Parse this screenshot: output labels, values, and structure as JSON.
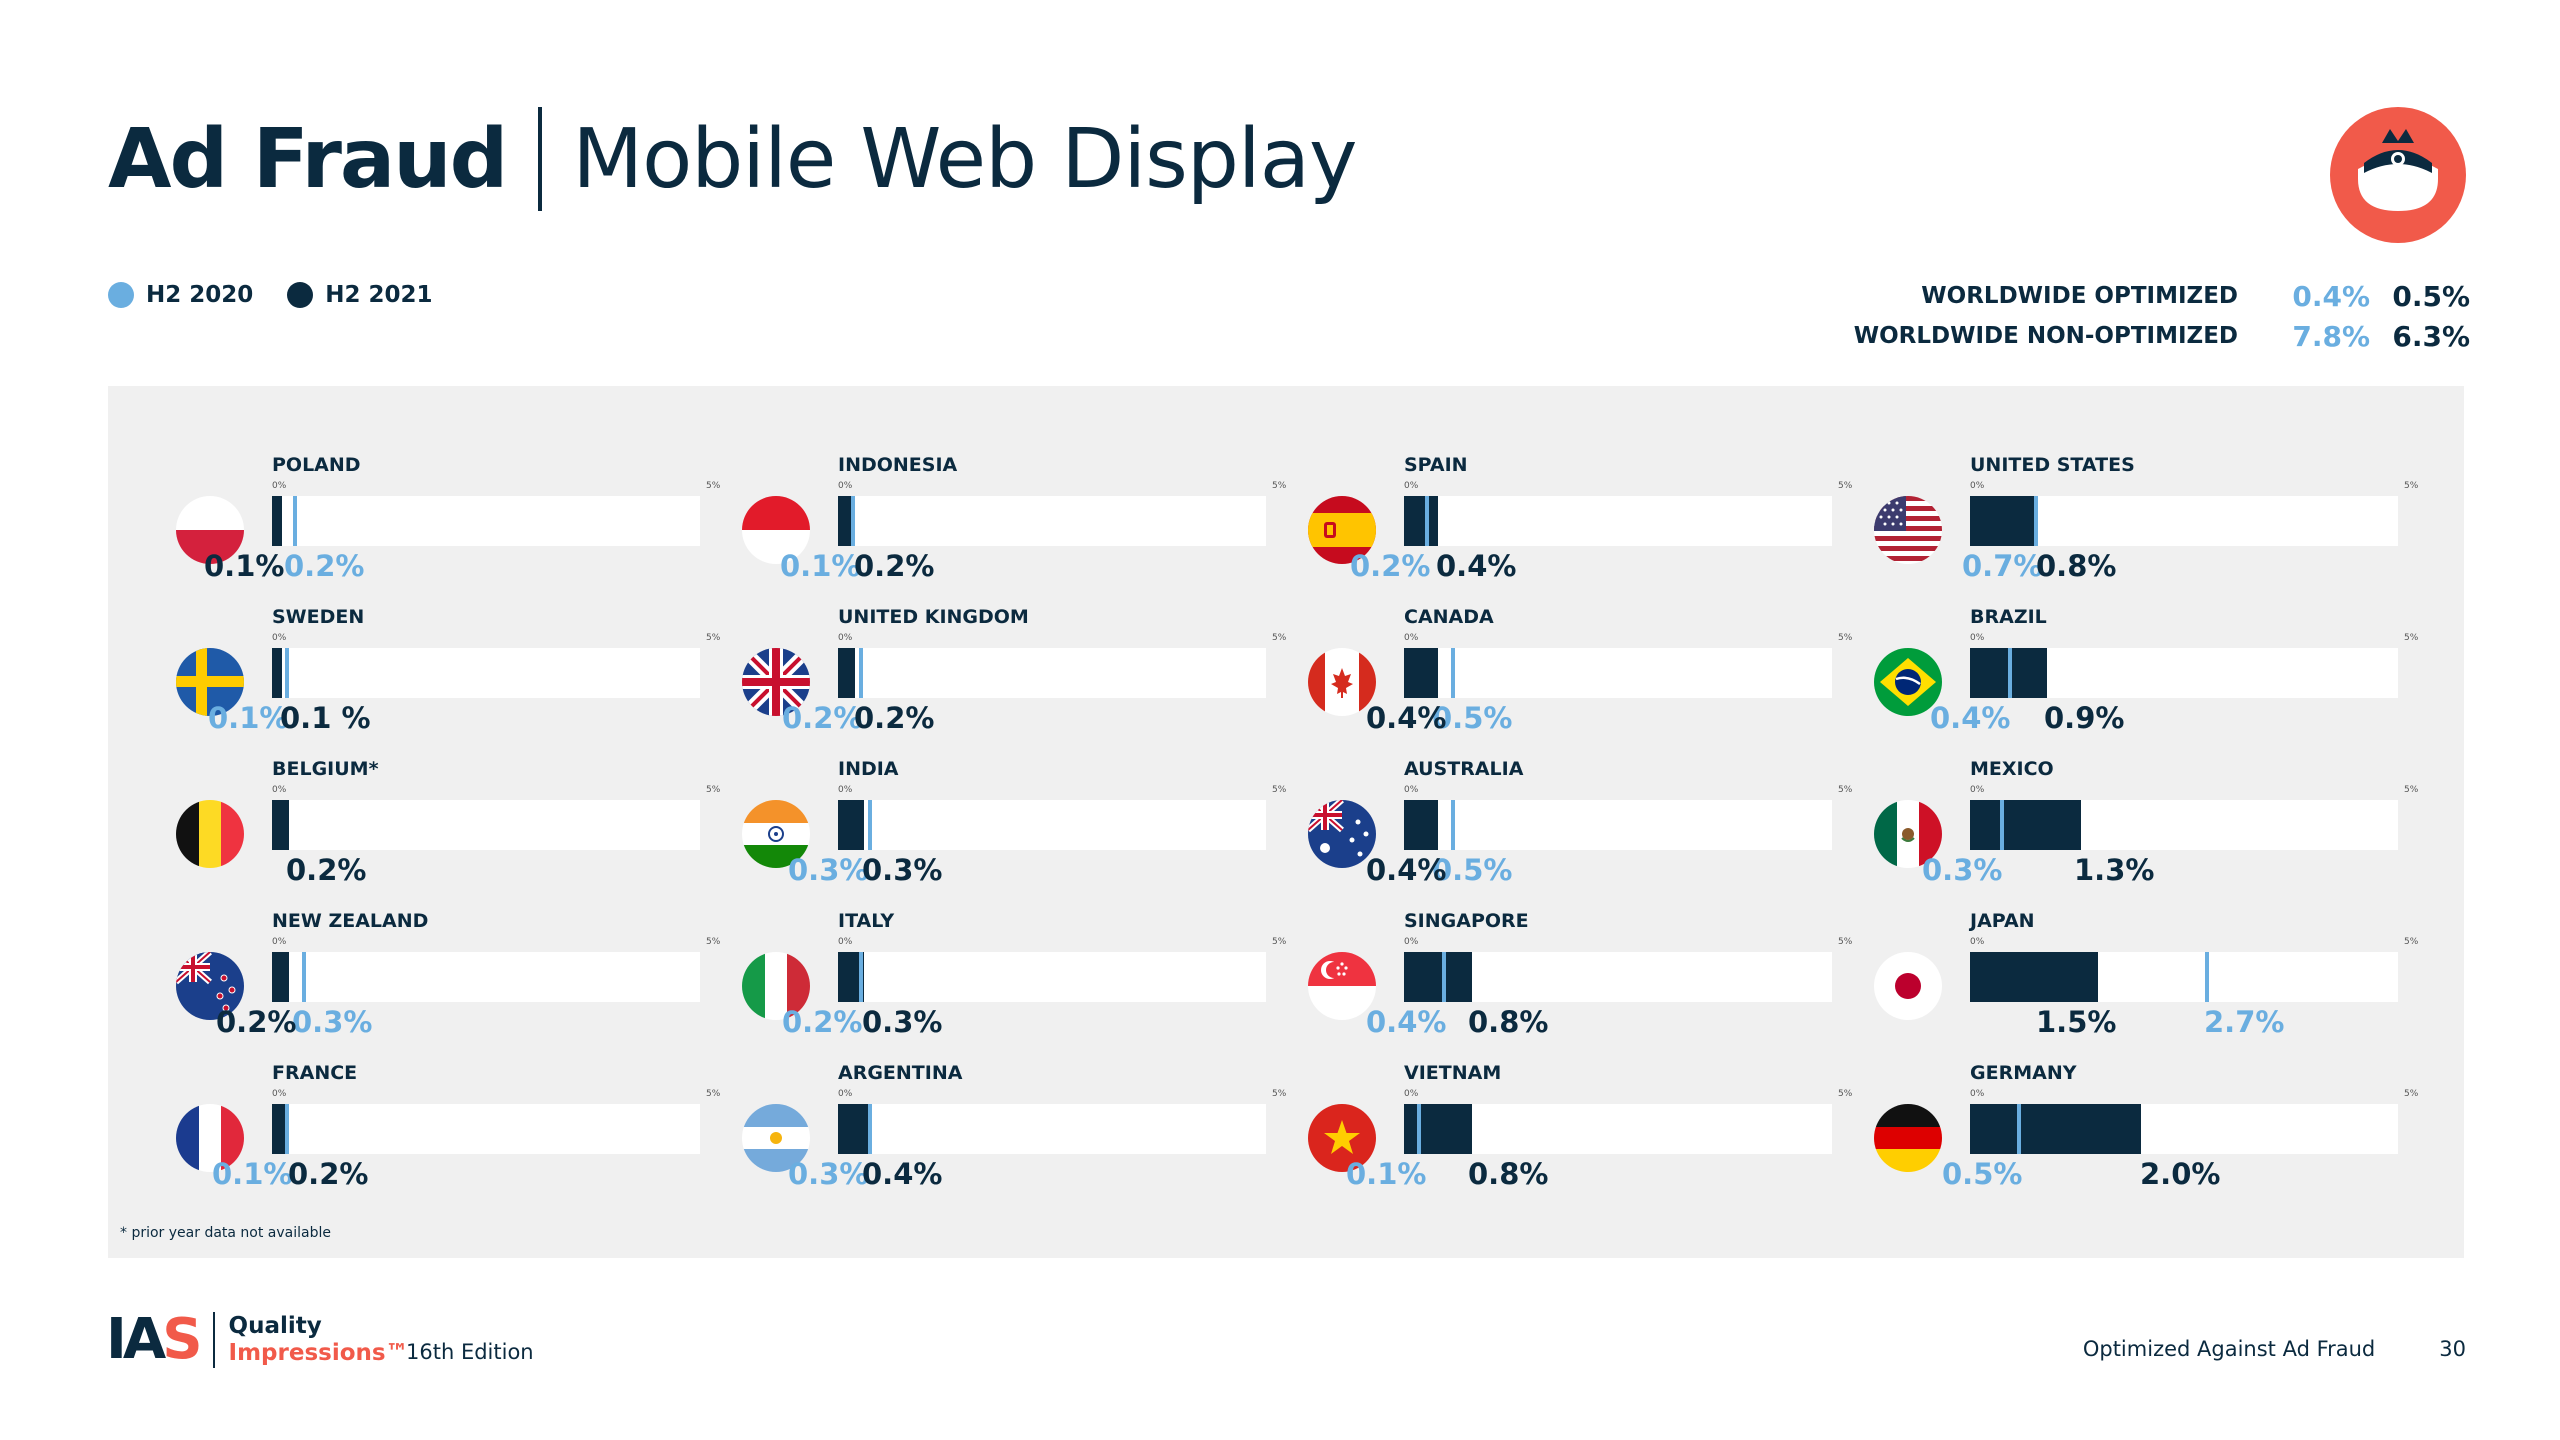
{
  "title": {
    "bold": "Ad Fraud",
    "light": "Mobile Web Display"
  },
  "legend": [
    {
      "label": "H2 2020",
      "color": "#6aaee0"
    },
    {
      "label": "H2 2021",
      "color": "#0b2a3f"
    }
  ],
  "worldwide": [
    {
      "label": "WORLDWIDE OPTIMIZED",
      "h2_2020": "0.4%",
      "h2_2021": "0.5%"
    },
    {
      "label": "WORLDWIDE NON-OPTIMIZED",
      "h2_2020": "7.8%",
      "h2_2021": "6.3%"
    }
  ],
  "colors": {
    "h2_2020": "#6aaee0",
    "h2_2021": "#0b2a3f",
    "brand_red": "#f15a4a",
    "panel_bg": "#f0f0f0"
  },
  "axis": {
    "min_label": "0%",
    "max_label": "5%"
  },
  "chart_data": {
    "type": "bar",
    "xlim": [
      0,
      5
    ],
    "series": [
      {
        "name": "H2 2020",
        "color": "#6aaee0"
      },
      {
        "name": "H2 2021",
        "color": "#0b2a3f"
      }
    ],
    "countries": [
      {
        "name": "POLAND",
        "flag": "poland-flag-icon",
        "h2_2020": 0.2,
        "h2_2021": 0.1,
        "label_2020": "0.2%",
        "label_2021": "0.1%"
      },
      {
        "name": "SWEDEN",
        "flag": "sweden-flag-icon",
        "h2_2020": 0.1,
        "h2_2021": 0.1,
        "label_2020": "0.1%",
        "label_2021": "0.1 %"
      },
      {
        "name": "BELGIUM*",
        "flag": "belgium-flag-icon",
        "h2_2020": null,
        "h2_2021": 0.2,
        "label_2020": "",
        "label_2021": "0.2%"
      },
      {
        "name": "NEW ZEALAND",
        "flag": "new-zealand-flag-icon",
        "h2_2020": 0.3,
        "h2_2021": 0.2,
        "label_2020": "0.3%",
        "label_2021": "0.2%"
      },
      {
        "name": "FRANCE",
        "flag": "france-flag-icon",
        "h2_2020": 0.1,
        "h2_2021": 0.2,
        "label_2020": "0.1%",
        "label_2021": "0.2%"
      },
      {
        "name": "INDONESIA",
        "flag": "indonesia-flag-icon",
        "h2_2020": 0.1,
        "h2_2021": 0.2,
        "label_2020": "0.1%",
        "label_2021": "0.2%"
      },
      {
        "name": "UNITED KINGDOM",
        "flag": "uk-flag-icon",
        "h2_2020": 0.2,
        "h2_2021": 0.2,
        "label_2020": "0.2%",
        "label_2021": "0.2%"
      },
      {
        "name": "INDIA",
        "flag": "india-flag-icon",
        "h2_2020": 0.3,
        "h2_2021": 0.3,
        "label_2020": "0.3%",
        "label_2021": "0.3%"
      },
      {
        "name": "ITALY",
        "flag": "italy-flag-icon",
        "h2_2020": 0.2,
        "h2_2021": 0.3,
        "label_2020": "0.2%",
        "label_2021": "0.3%"
      },
      {
        "name": "ARGENTINA",
        "flag": "argentina-flag-icon",
        "h2_2020": 0.3,
        "h2_2021": 0.4,
        "label_2020": "0.3%",
        "label_2021": "0.4%"
      },
      {
        "name": "SPAIN",
        "flag": "spain-flag-icon",
        "h2_2020": 0.2,
        "h2_2021": 0.4,
        "label_2020": "0.2%",
        "label_2021": "0.4%"
      },
      {
        "name": "CANADA",
        "flag": "canada-flag-icon",
        "h2_2020": 0.5,
        "h2_2021": 0.4,
        "label_2020": "0.5%",
        "label_2021": "0.4%"
      },
      {
        "name": "AUSTRALIA",
        "flag": "australia-flag-icon",
        "h2_2020": 0.5,
        "h2_2021": 0.4,
        "label_2020": "0.5%",
        "label_2021": "0.4%"
      },
      {
        "name": "SINGAPORE",
        "flag": "singapore-flag-icon",
        "h2_2020": 0.4,
        "h2_2021": 0.8,
        "label_2020": "0.4%",
        "label_2021": "0.8%"
      },
      {
        "name": "VIETNAM",
        "flag": "vietnam-flag-icon",
        "h2_2020": 0.1,
        "h2_2021": 0.8,
        "label_2020": "0.1%",
        "label_2021": "0.8%"
      },
      {
        "name": "UNITED STATES",
        "flag": "us-flag-icon",
        "h2_2020": 0.7,
        "h2_2021": 0.8,
        "label_2020": "0.7%",
        "label_2021": "0.8%"
      },
      {
        "name": "BRAZIL",
        "flag": "brazil-flag-icon",
        "h2_2020": 0.4,
        "h2_2021": 0.9,
        "label_2020": "0.4%",
        "label_2021": "0.9%"
      },
      {
        "name": "MEXICO",
        "flag": "mexico-flag-icon",
        "h2_2020": 0.3,
        "h2_2021": 1.3,
        "label_2020": "0.3%",
        "label_2021": "1.3%"
      },
      {
        "name": "JAPAN",
        "flag": "japan-flag-icon",
        "h2_2020": 2.7,
        "h2_2021": 1.5,
        "label_2020": "2.7%",
        "label_2021": "1.5%"
      },
      {
        "name": "GERMANY",
        "flag": "germany-flag-icon",
        "h2_2020": 0.5,
        "h2_2021": 2.0,
        "label_2020": "0.5%",
        "label_2021": "2.0%"
      }
    ]
  },
  "footnote": "* prior year data not available",
  "footer": {
    "logo_ia": "IA",
    "logo_s": "S",
    "brand_line1": "Quality",
    "brand_line2": "Impressions™",
    "edition": "16th Edition",
    "section": "Optimized Against Ad Fraud",
    "page": "30"
  }
}
